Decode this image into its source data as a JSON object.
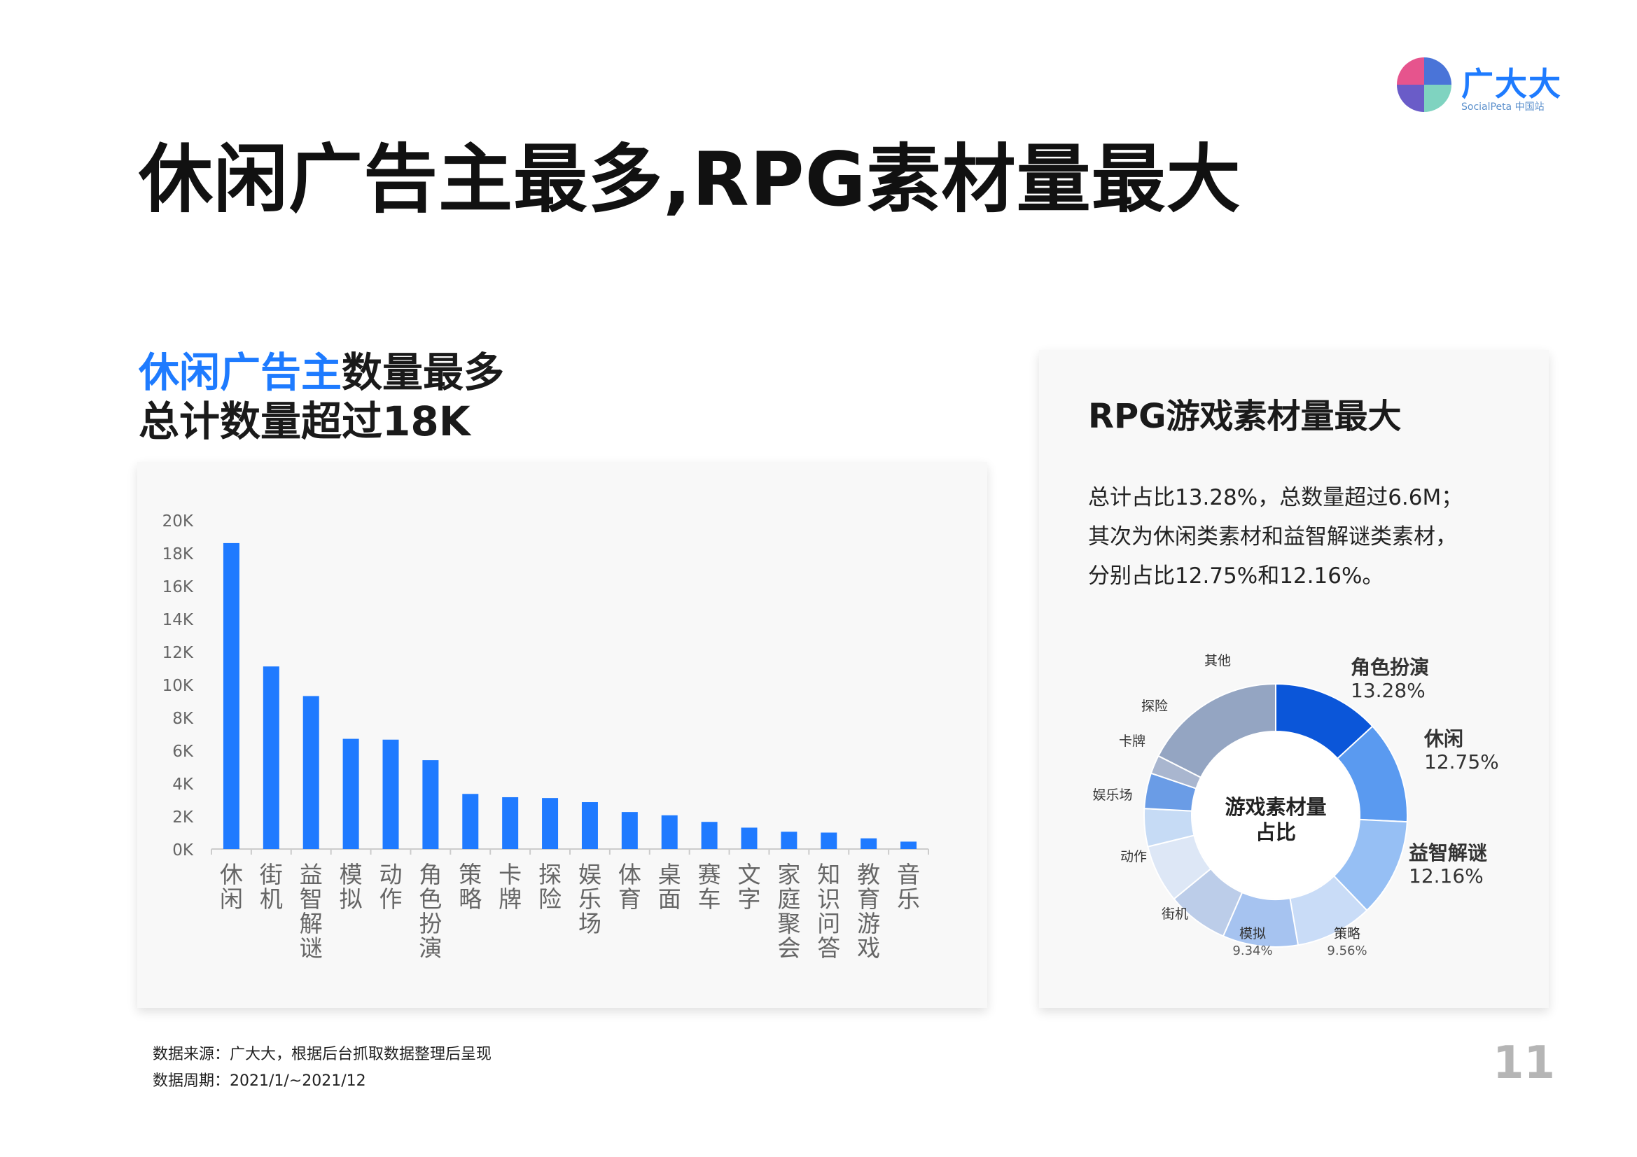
{
  "title": "休闲广告主最多,RPG素材量最大",
  "logo": {
    "cn": "广大大",
    "en": "SocialPeta 中国站",
    "colors": [
      "#e6548d",
      "#4a74d8",
      "#6a5cc8",
      "#7fd3c0"
    ]
  },
  "left_heading": {
    "highlight": "休闲广告主",
    "rest": "数量最多",
    "line2": "总计数量超过18K"
  },
  "right_heading": "RPG游戏素材量最大",
  "right_desc": [
    "总计占比13.28%，总数量超过6.6M；",
    "其次为休闲类素材和益智解谜类素材，",
    "分别占比12.75%和12.16%。"
  ],
  "footer": {
    "source": "数据来源：广大大，根据后台抓取数据整理后呈现",
    "period": "数据周期：2021/1/~2021/12"
  },
  "page_number": "11",
  "chart_data": [
    {
      "type": "bar",
      "categories": [
        "休闲",
        "街机",
        "益智解谜",
        "模拟",
        "动作",
        "角色扮演",
        "策略",
        "卡牌",
        "探险",
        "娱乐场",
        "体育",
        "桌面",
        "赛车",
        "文字",
        "家庭聚会",
        "知识问答",
        "教育游戏",
        "音乐"
      ],
      "values": [
        18600,
        11100,
        9300,
        6700,
        6650,
        5400,
        3350,
        3150,
        3100,
        2850,
        2250,
        2050,
        1650,
        1300,
        1050,
        1000,
        650,
        450
      ],
      "yticks": [
        "0K",
        "2K",
        "4K",
        "6K",
        "8K",
        "10K",
        "12K",
        "14K",
        "16K",
        "18K",
        "20K"
      ],
      "ylim": [
        0,
        20000
      ],
      "color": "#1f7aff"
    },
    {
      "type": "pie",
      "center_label": [
        "游戏素材量",
        "占比"
      ],
      "slices": [
        {
          "name": "角色扮演",
          "value": 13.28,
          "label": "13.28%",
          "color": "#0b56d9"
        },
        {
          "name": "休闲",
          "value": 12.75,
          "label": "12.75%",
          "color": "#5a9af0"
        },
        {
          "name": "益智解谜",
          "value": 12.16,
          "label": "12.16%",
          "color": "#96bff4"
        },
        {
          "name": "策略",
          "value": 9.56,
          "label": "9.56%",
          "color": "#c9dcf7"
        },
        {
          "name": "模拟",
          "value": 9.34,
          "label": "9.34%",
          "color": "#a6c3f0"
        },
        {
          "name": "街机",
          "value": 7.6,
          "color": "#bccde9"
        },
        {
          "name": "动作",
          "value": 7.2,
          "color": "#dde7f6"
        },
        {
          "name": "娱乐场",
          "value": 4.7,
          "color": "#c6dbf5"
        },
        {
          "name": "卡牌",
          "value": 4.4,
          "color": "#6a9ce6"
        },
        {
          "name": "探险",
          "value": 2.3,
          "color": "#a9b6cf"
        },
        {
          "name": "其他",
          "value": 17.7,
          "color": "#94a5c2"
        }
      ]
    }
  ]
}
